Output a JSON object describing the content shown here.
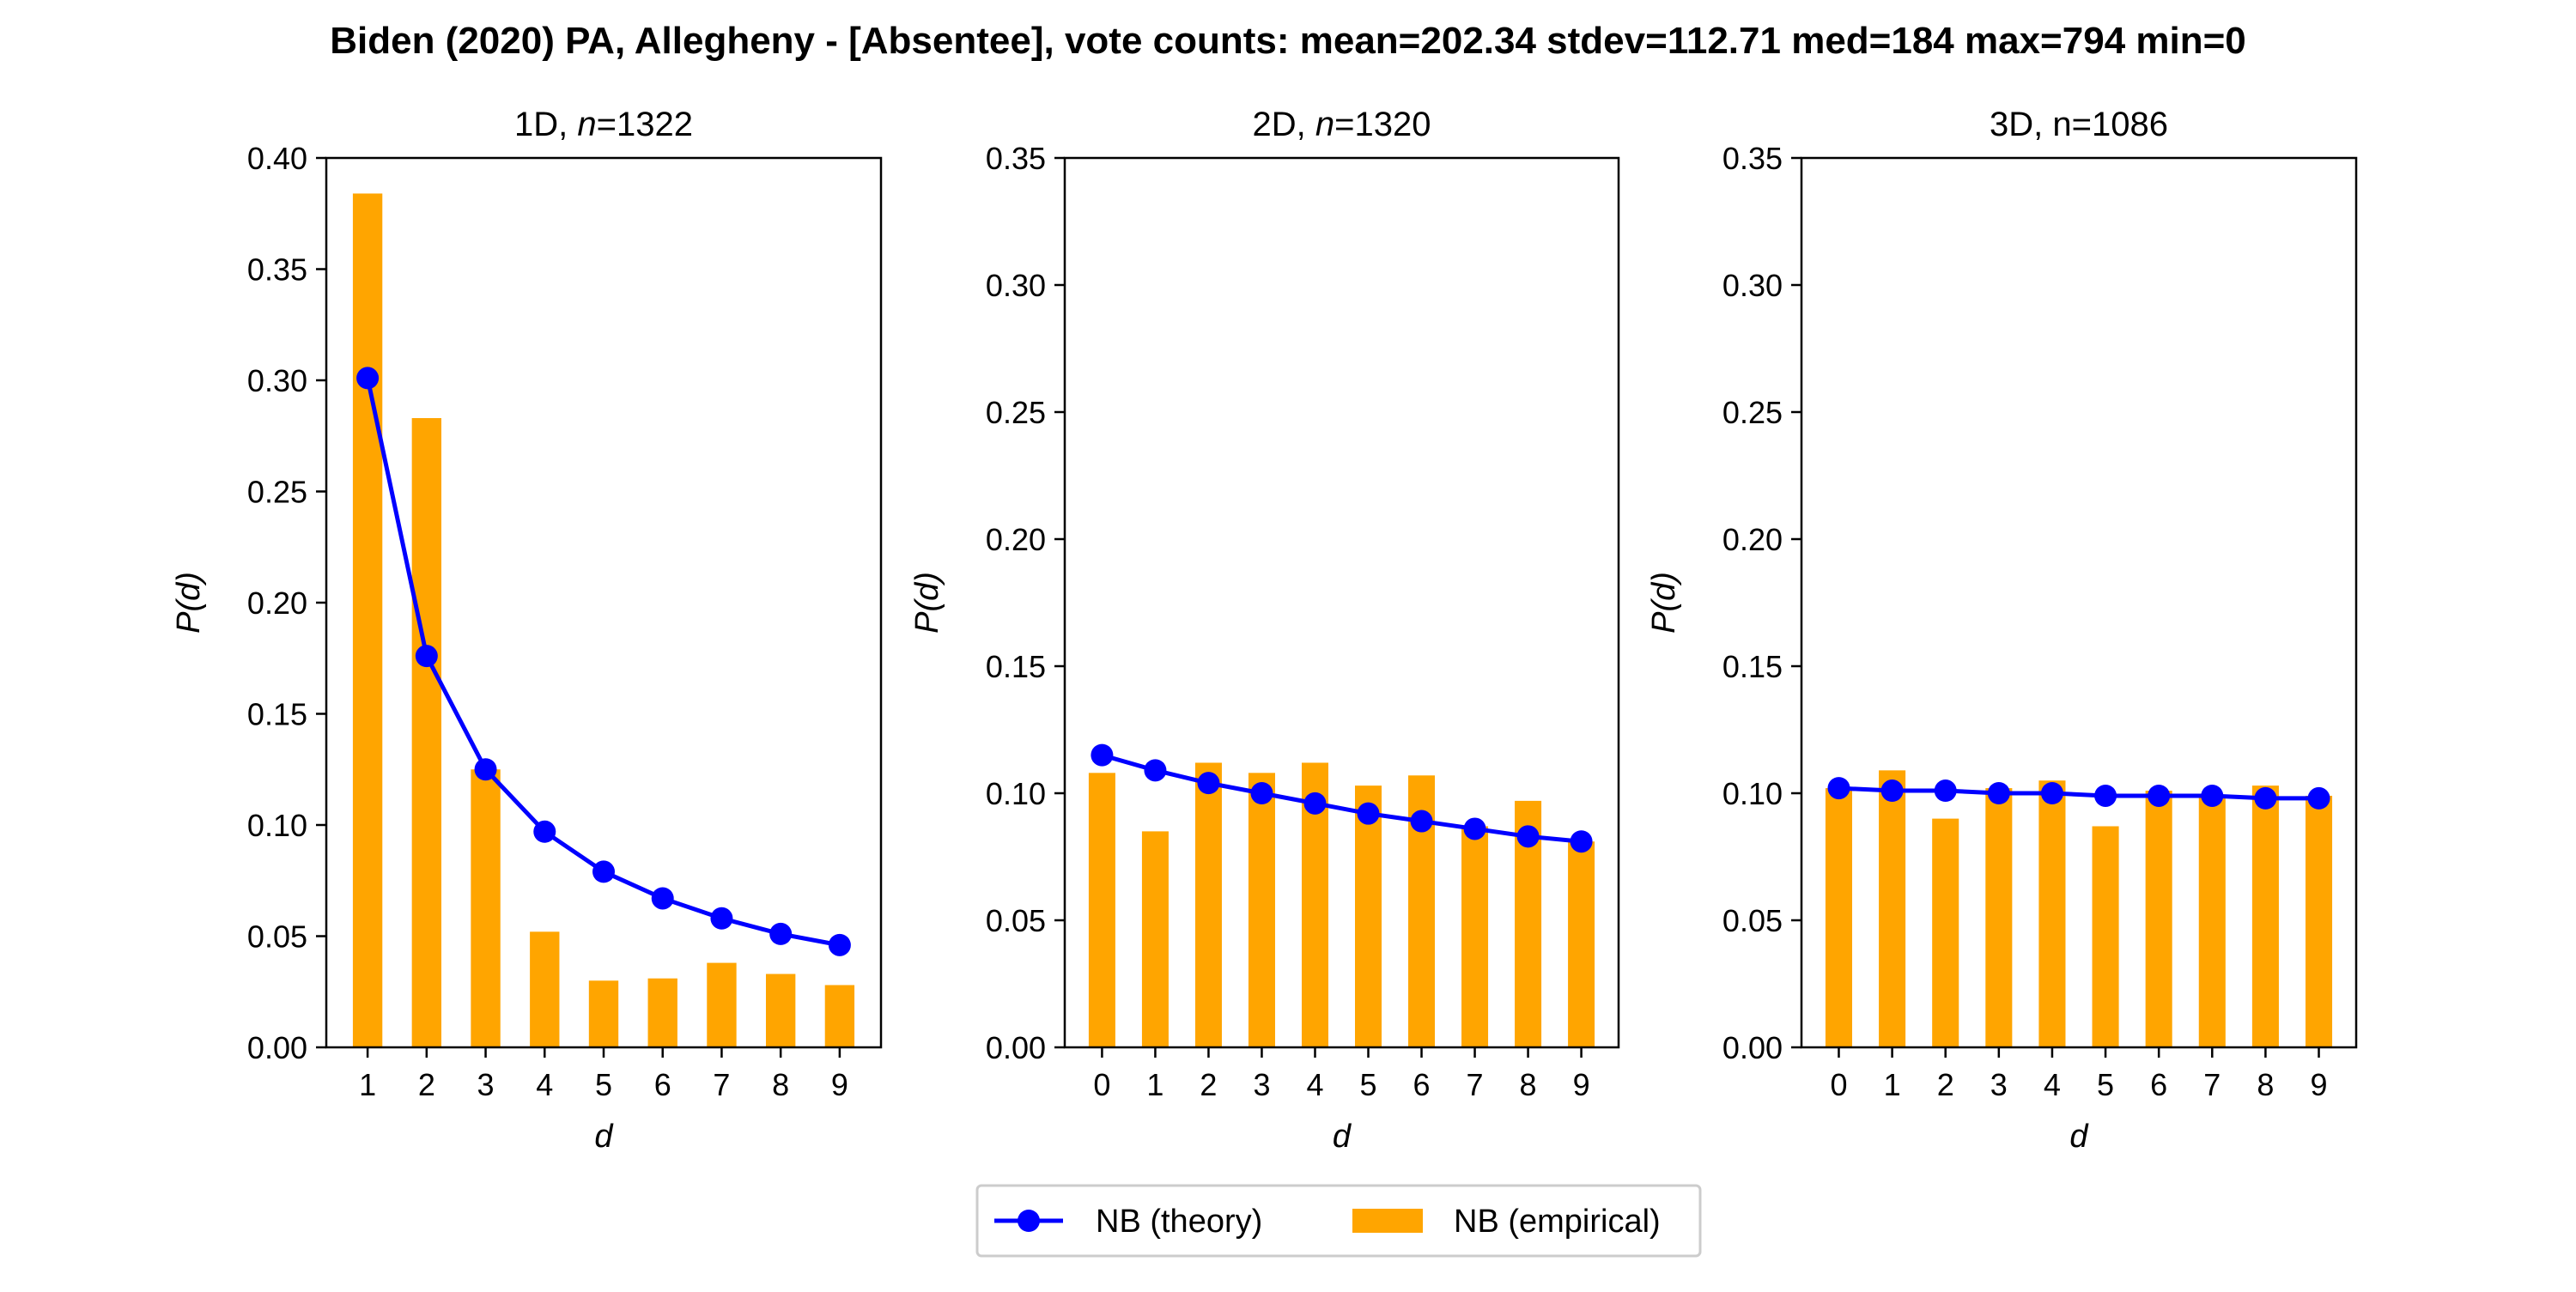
{
  "figure": {
    "title": "Biden (2020) PA, Allegheny - [Absentee], vote counts: mean=202.34 stdev=112.71 med=184 max=794 min=0"
  },
  "colors": {
    "theory": "#0000ff",
    "empirical": "#ffa500",
    "axis": "#000000",
    "legend_border": "#cccccc"
  },
  "legend": {
    "theory_label": "NB (theory)",
    "empirical_label": "NB (empirical)"
  },
  "chart_data": [
    {
      "type": "bar",
      "title": "1D, n=1322",
      "title_prefix": "1D, ",
      "title_n": "n",
      "title_suffix": "=1322",
      "xlabel": "d",
      "ylabel": "P(d)",
      "ylim": [
        0,
        0.4
      ],
      "yticks": [
        "0.00",
        "0.05",
        "0.10",
        "0.15",
        "0.20",
        "0.25",
        "0.30",
        "0.35",
        "0.40"
      ],
      "categories": [
        "1",
        "2",
        "3",
        "4",
        "5",
        "6",
        "7",
        "8",
        "9"
      ],
      "series": [
        {
          "name": "NB (empirical)",
          "kind": "bar",
          "values": [
            0.384,
            0.283,
            0.125,
            0.052,
            0.03,
            0.031,
            0.038,
            0.033,
            0.028
          ]
        },
        {
          "name": "NB (theory)",
          "kind": "line",
          "values": [
            0.301,
            0.176,
            0.125,
            0.097,
            0.079,
            0.067,
            0.058,
            0.051,
            0.046
          ]
        }
      ]
    },
    {
      "type": "bar",
      "title": "2D, n=1320",
      "title_prefix": "2D, ",
      "title_n": "n",
      "title_suffix": "=1320",
      "xlabel": "d",
      "ylabel": "P(d)",
      "ylim": [
        0,
        0.35
      ],
      "yticks": [
        "0.00",
        "0.05",
        "0.10",
        "0.15",
        "0.20",
        "0.25",
        "0.30",
        "0.35"
      ],
      "categories": [
        "0",
        "1",
        "2",
        "3",
        "4",
        "5",
        "6",
        "7",
        "8",
        "9"
      ],
      "series": [
        {
          "name": "NB (empirical)",
          "kind": "bar",
          "values": [
            0.108,
            0.085,
            0.112,
            0.108,
            0.112,
            0.103,
            0.107,
            0.087,
            0.097,
            0.081
          ]
        },
        {
          "name": "NB (theory)",
          "kind": "line",
          "values": [
            0.115,
            0.109,
            0.104,
            0.1,
            0.096,
            0.092,
            0.089,
            0.086,
            0.083,
            0.081
          ]
        }
      ]
    },
    {
      "type": "bar",
      "title": "3D, n=1086",
      "title_prefix": "3D, ",
      "title_n": "",
      "title_suffix": "",
      "xlabel": "d",
      "ylabel": "P(d)",
      "ylim": [
        0,
        0.35
      ],
      "yticks": [
        "0.00",
        "0.05",
        "0.10",
        "0.15",
        "0.20",
        "0.25",
        "0.30",
        "0.35"
      ],
      "categories": [
        "0",
        "1",
        "2",
        "3",
        "4",
        "5",
        "6",
        "7",
        "8",
        "9"
      ],
      "series": [
        {
          "name": "NB (empirical)",
          "kind": "bar",
          "values": [
            0.102,
            0.109,
            0.09,
            0.102,
            0.105,
            0.087,
            0.101,
            0.099,
            0.103,
            0.099
          ]
        },
        {
          "name": "NB (theory)",
          "kind": "line",
          "values": [
            0.102,
            0.101,
            0.101,
            0.1,
            0.1,
            0.099,
            0.099,
            0.099,
            0.098,
            0.098
          ]
        }
      ]
    }
  ]
}
